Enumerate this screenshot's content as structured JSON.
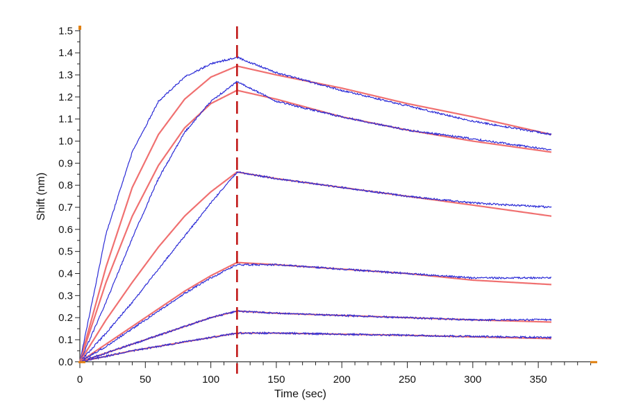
{
  "chart_data": {
    "type": "line",
    "xlabel": "Time (sec)",
    "ylabel": "Shift (nm)",
    "xlim": [
      0,
      395
    ],
    "ylim": [
      -0.01,
      1.52
    ],
    "x_ticks": [
      0,
      50,
      100,
      150,
      200,
      250,
      300,
      350
    ],
    "y_ticks": [
      0.0,
      0.1,
      0.2,
      0.3,
      0.4,
      0.5,
      0.6,
      0.7,
      0.8,
      0.9,
      1.0,
      1.1,
      1.2,
      1.3,
      1.4,
      1.5
    ],
    "x_tick_labels": [
      "0",
      "50",
      "100",
      "150",
      "200",
      "250",
      "300",
      "350"
    ],
    "y_tick_labels": [
      "0.0",
      "0.1",
      "0.2",
      "0.3",
      "0.4",
      "0.5",
      "0.6",
      "0.7",
      "0.8",
      "0.9",
      "1.0",
      "1.1",
      "1.2",
      "1.3",
      "1.4",
      "1.5"
    ],
    "association_end": 120,
    "x_end": 360,
    "grid": false,
    "legend": "none",
    "colors": {
      "measured": "#2a2ad6",
      "fit": "#f07070",
      "divider": "#c01818",
      "axis_marker": "#e08010"
    },
    "curves": [
      {
        "measured": {
          "x": [
            0,
            20,
            40,
            60,
            80,
            100,
            120,
            150,
            200,
            250,
            300,
            360
          ],
          "y": [
            0,
            0.58,
            0.95,
            1.18,
            1.29,
            1.35,
            1.38,
            1.31,
            1.23,
            1.16,
            1.09,
            1.03
          ]
        },
        "fit": {
          "x": [
            0,
            20,
            40,
            60,
            80,
            100,
            120,
            150,
            200,
            250,
            300,
            360
          ],
          "y": [
            0,
            0.43,
            0.79,
            1.03,
            1.19,
            1.29,
            1.34,
            1.3,
            1.24,
            1.17,
            1.11,
            1.03
          ]
        }
      },
      {
        "measured": {
          "x": [
            0,
            20,
            40,
            60,
            80,
            100,
            120,
            150,
            200,
            250,
            300,
            360
          ],
          "y": [
            0,
            0.27,
            0.56,
            0.83,
            1.04,
            1.18,
            1.27,
            1.18,
            1.11,
            1.05,
            1.01,
            0.96
          ]
        },
        "fit": {
          "x": [
            0,
            20,
            40,
            60,
            80,
            100,
            120,
            150,
            200,
            250,
            300,
            360
          ],
          "y": [
            0,
            0.36,
            0.66,
            0.89,
            1.06,
            1.17,
            1.23,
            1.19,
            1.11,
            1.05,
            1.0,
            0.95
          ]
        }
      },
      {
        "measured": {
          "x": [
            0,
            20,
            40,
            60,
            80,
            100,
            120,
            150,
            200,
            250,
            300,
            360
          ],
          "y": [
            0,
            0.13,
            0.27,
            0.42,
            0.57,
            0.72,
            0.86,
            0.83,
            0.79,
            0.75,
            0.72,
            0.7
          ]
        },
        "fit": {
          "x": [
            0,
            20,
            40,
            60,
            80,
            100,
            120,
            150,
            200,
            250,
            300,
            360
          ],
          "y": [
            0,
            0.19,
            0.36,
            0.52,
            0.66,
            0.77,
            0.86,
            0.83,
            0.79,
            0.75,
            0.71,
            0.66
          ]
        }
      },
      {
        "measured": {
          "x": [
            0,
            20,
            40,
            60,
            80,
            100,
            120,
            150,
            200,
            250,
            300,
            360
          ],
          "y": [
            0,
            0.07,
            0.15,
            0.23,
            0.31,
            0.38,
            0.44,
            0.44,
            0.42,
            0.4,
            0.38,
            0.38
          ]
        },
        "fit": {
          "x": [
            0,
            20,
            40,
            60,
            80,
            100,
            120,
            150,
            200,
            250,
            300,
            360
          ],
          "y": [
            0,
            0.08,
            0.16,
            0.24,
            0.32,
            0.39,
            0.45,
            0.44,
            0.42,
            0.4,
            0.37,
            0.35
          ]
        }
      },
      {
        "measured": {
          "x": [
            0,
            20,
            40,
            60,
            80,
            100,
            120,
            150,
            200,
            250,
            300,
            360
          ],
          "y": [
            0,
            0.04,
            0.08,
            0.12,
            0.16,
            0.2,
            0.23,
            0.22,
            0.21,
            0.2,
            0.19,
            0.19
          ]
        },
        "fit": {
          "x": [
            0,
            20,
            40,
            60,
            80,
            100,
            120,
            150,
            200,
            250,
            300,
            360
          ],
          "y": [
            0,
            0.04,
            0.08,
            0.12,
            0.16,
            0.2,
            0.23,
            0.22,
            0.21,
            0.2,
            0.19,
            0.18
          ]
        }
      },
      {
        "measured": {
          "x": [
            0,
            20,
            40,
            60,
            80,
            100,
            120,
            150,
            200,
            250,
            300,
            360
          ],
          "y": [
            0,
            0.025,
            0.05,
            0.07,
            0.09,
            0.11,
            0.13,
            0.13,
            0.125,
            0.12,
            0.115,
            0.11
          ]
        },
        "fit": {
          "x": [
            0,
            20,
            40,
            60,
            80,
            100,
            120,
            150,
            200,
            250,
            300,
            360
          ],
          "y": [
            0,
            0.025,
            0.05,
            0.07,
            0.09,
            0.11,
            0.13,
            0.13,
            0.125,
            0.12,
            0.113,
            0.105
          ]
        }
      }
    ]
  }
}
